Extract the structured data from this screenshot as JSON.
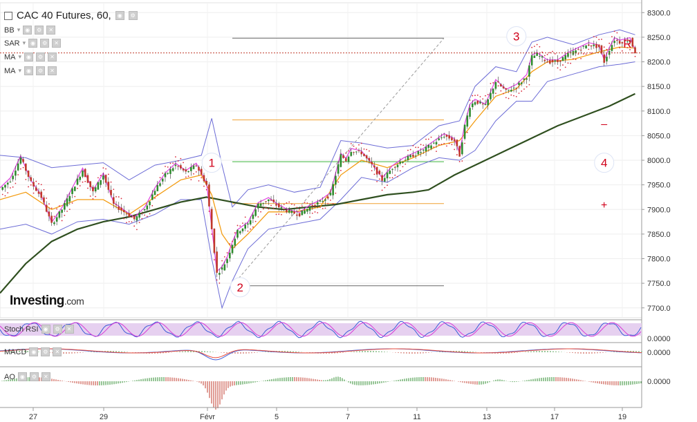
{
  "header": {
    "symbol_title": "CAC 40 Futures, 60,",
    "indicators": [
      "BB",
      "SAR",
      "MA",
      "MA"
    ]
  },
  "brand": {
    "name": "Investing",
    "domain": ".com"
  },
  "subpanels": {
    "stoch_rsi": "Stoch RSI",
    "macd": "MACD",
    "ao": "AO"
  },
  "colors": {
    "up": "#2e8b2e",
    "down": "#c0392b",
    "bollinger": "#6b6bd6",
    "sar": "#d9283a",
    "ma_short": "#f39c12",
    "ma_fast": "#e040e0",
    "ma_long": "#2f4f1f",
    "price_line": "#c0392b",
    "marker": "#d0021b"
  },
  "chart_data": {
    "type": "candlestick",
    "title": "CAC 40 Futures, 60,",
    "x_ticks": [
      "27",
      "29",
      "Févr",
      "5",
      "7",
      "11",
      "13",
      "17",
      "19"
    ],
    "y_ticks": [
      7700.0,
      7750.0,
      7800.0,
      7850.0,
      7900.0,
      7950.0,
      8000.0,
      8050.0,
      8100.0,
      8150.0,
      8200.0,
      8250.0,
      8300.0
    ],
    "ylim": [
      7680,
      8320
    ],
    "current_price": 8218,
    "grid": true,
    "price_path": [
      [
        0,
        7940
      ],
      [
        4,
        7960
      ],
      [
        8,
        8005
      ],
      [
        12,
        7955
      ],
      [
        16,
        7925
      ],
      [
        20,
        7870
      ],
      [
        24,
        7900
      ],
      [
        28,
        7940
      ],
      [
        32,
        7980
      ],
      [
        36,
        7935
      ],
      [
        40,
        7970
      ],
      [
        44,
        7910
      ],
      [
        48,
        7895
      ],
      [
        52,
        7880
      ],
      [
        56,
        7900
      ],
      [
        60,
        7940
      ],
      [
        64,
        7970
      ],
      [
        68,
        7990
      ],
      [
        72,
        7975
      ],
      [
        76,
        7990
      ],
      [
        80,
        7950
      ],
      [
        82,
        7860
      ],
      [
        84,
        7770
      ],
      [
        86,
        7780
      ],
      [
        88,
        7800
      ],
      [
        90,
        7830
      ],
      [
        92,
        7855
      ],
      [
        96,
        7870
      ],
      [
        100,
        7910
      ],
      [
        104,
        7920
      ],
      [
        108,
        7905
      ],
      [
        112,
        7895
      ],
      [
        116,
        7890
      ],
      [
        120,
        7905
      ],
      [
        124,
        7915
      ],
      [
        128,
        7930
      ],
      [
        130,
        7970
      ],
      [
        132,
        8010
      ],
      [
        134,
        8000
      ],
      [
        136,
        8020
      ],
      [
        140,
        8015
      ],
      [
        144,
        7990
      ],
      [
        148,
        7960
      ],
      [
        152,
        7985
      ],
      [
        156,
        8000
      ],
      [
        160,
        8010
      ],
      [
        164,
        8020
      ],
      [
        168,
        8035
      ],
      [
        172,
        8050
      ],
      [
        176,
        8040
      ],
      [
        178,
        8010
      ],
      [
        180,
        8070
      ],
      [
        182,
        8110
      ],
      [
        184,
        8120
      ],
      [
        188,
        8110
      ],
      [
        192,
        8160
      ],
      [
        196,
        8140
      ],
      [
        200,
        8150
      ],
      [
        204,
        8170
      ],
      [
        206,
        8210
      ],
      [
        208,
        8215
      ],
      [
        212,
        8200
      ],
      [
        216,
        8200
      ],
      [
        220,
        8215
      ],
      [
        224,
        8225
      ],
      [
        228,
        8235
      ],
      [
        232,
        8230
      ],
      [
        234,
        8200
      ],
      [
        236,
        8225
      ],
      [
        238,
        8245
      ],
      [
        240,
        8240
      ],
      [
        244,
        8245
      ],
      [
        246,
        8220
      ]
    ],
    "bollinger_upper": [
      [
        0,
        8010
      ],
      [
        10,
        8005
      ],
      [
        20,
        7985
      ],
      [
        30,
        7990
      ],
      [
        40,
        7995
      ],
      [
        50,
        7960
      ],
      [
        60,
        7990
      ],
      [
        70,
        8000
      ],
      [
        78,
        8010
      ],
      [
        82,
        8085
      ],
      [
        86,
        7990
      ],
      [
        90,
        7905
      ],
      [
        96,
        7940
      ],
      [
        104,
        7950
      ],
      [
        114,
        7935
      ],
      [
        124,
        7945
      ],
      [
        132,
        8040
      ],
      [
        140,
        8035
      ],
      [
        150,
        8025
      ],
      [
        160,
        8030
      ],
      [
        170,
        8070
      ],
      [
        178,
        8080
      ],
      [
        184,
        8150
      ],
      [
        192,
        8190
      ],
      [
        200,
        8180
      ],
      [
        206,
        8240
      ],
      [
        212,
        8250
      ],
      [
        222,
        8235
      ],
      [
        232,
        8255
      ],
      [
        240,
        8265
      ],
      [
        246,
        8255
      ]
    ],
    "bollinger_lower": [
      [
        0,
        7860
      ],
      [
        10,
        7870
      ],
      [
        20,
        7850
      ],
      [
        30,
        7875
      ],
      [
        40,
        7880
      ],
      [
        50,
        7870
      ],
      [
        60,
        7890
      ],
      [
        70,
        7920
      ],
      [
        78,
        7920
      ],
      [
        82,
        7800
      ],
      [
        86,
        7700
      ],
      [
        90,
        7755
      ],
      [
        96,
        7820
      ],
      [
        104,
        7860
      ],
      [
        114,
        7870
      ],
      [
        124,
        7880
      ],
      [
        132,
        7920
      ],
      [
        140,
        7965
      ],
      [
        150,
        7955
      ],
      [
        160,
        7985
      ],
      [
        170,
        8005
      ],
      [
        178,
        8000
      ],
      [
        184,
        8020
      ],
      [
        192,
        8080
      ],
      [
        200,
        8120
      ],
      [
        206,
        8120
      ],
      [
        212,
        8160
      ],
      [
        222,
        8175
      ],
      [
        232,
        8190
      ],
      [
        240,
        8195
      ],
      [
        246,
        8200
      ]
    ],
    "ma_short": [
      [
        0,
        7920
      ],
      [
        10,
        7935
      ],
      [
        20,
        7900
      ],
      [
        30,
        7920
      ],
      [
        40,
        7920
      ],
      [
        50,
        7890
      ],
      [
        60,
        7925
      ],
      [
        70,
        7960
      ],
      [
        78,
        7970
      ],
      [
        82,
        7930
      ],
      [
        86,
        7850
      ],
      [
        90,
        7820
      ],
      [
        96,
        7850
      ],
      [
        104,
        7895
      ],
      [
        114,
        7895
      ],
      [
        124,
        7905
      ],
      [
        132,
        7970
      ],
      [
        140,
        8000
      ],
      [
        150,
        7985
      ],
      [
        160,
        8005
      ],
      [
        170,
        8030
      ],
      [
        178,
        8040
      ],
      [
        184,
        8080
      ],
      [
        192,
        8130
      ],
      [
        200,
        8145
      ],
      [
        206,
        8180
      ],
      [
        212,
        8200
      ],
      [
        222,
        8205
      ],
      [
        232,
        8220
      ],
      [
        240,
        8230
      ],
      [
        246,
        8228
      ]
    ],
    "ma_long": [
      [
        0,
        7730
      ],
      [
        10,
        7790
      ],
      [
        20,
        7835
      ],
      [
        30,
        7860
      ],
      [
        40,
        7875
      ],
      [
        50,
        7885
      ],
      [
        60,
        7900
      ],
      [
        70,
        7915
      ],
      [
        80,
        7925
      ],
      [
        90,
        7915
      ],
      [
        100,
        7905
      ],
      [
        110,
        7900
      ],
      [
        120,
        7905
      ],
      [
        130,
        7910
      ],
      [
        140,
        7920
      ],
      [
        150,
        7930
      ],
      [
        160,
        7935
      ],
      [
        166,
        7940
      ],
      [
        176,
        7970
      ],
      [
        186,
        7995
      ],
      [
        196,
        8020
      ],
      [
        206,
        8045
      ],
      [
        216,
        8070
      ],
      [
        226,
        8090
      ],
      [
        236,
        8110
      ],
      [
        246,
        8135
      ]
    ],
    "annotations": [
      {
        "label": "1",
        "x": 82,
        "y": 7995
      },
      {
        "label": "2",
        "x": 93,
        "y": 7742
      },
      {
        "label": "3",
        "x": 200,
        "y": 8252
      },
      {
        "label": "4",
        "x": 234,
        "y": 7995
      },
      {
        "label": "–",
        "x": 234,
        "y": 8075
      },
      {
        "label": "+",
        "x": 234,
        "y": 7910
      },
      {
        "label": "R",
        "x": 243,
        "y": 8237
      }
    ],
    "fib_levels": [
      8248,
      8082,
      7997,
      7912,
      7745
    ]
  }
}
